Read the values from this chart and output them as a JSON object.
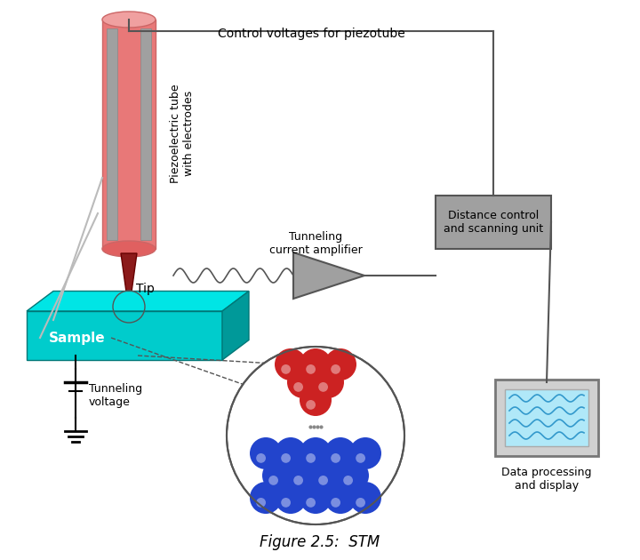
{
  "title": "Figure 2.5:  STM",
  "bg_color": "#ffffff",
  "text_color": "#000000",
  "label_piezo": "Piezoelectric tube\nwith electrodes",
  "label_tunneling_amp": "Tunneling\ncurrent amplifier",
  "label_distance": "Distance control\nand scanning unit",
  "label_control": "Control voltages for piezotube",
  "label_tip": "Tip",
  "label_sample": "Sample",
  "label_tunneling_v": "Tunneling\nvoltage",
  "label_data": "Data processing\nand display",
  "tube_color": "#e87878",
  "tube_top_color": "#f4a0a0",
  "electrode_color": "#a0a0a0",
  "tip_color": "#8b1a1a",
  "sample_top": "#00e5e5",
  "sample_side": "#009999",
  "sample_front": "#00cccc",
  "box_color": "#a0a0a0",
  "line_color": "#555555",
  "atom_red": "#cc2222",
  "atom_blue": "#2244cc",
  "atom_blue_light": "#4466ee",
  "screen_color": "#b0e8f8"
}
